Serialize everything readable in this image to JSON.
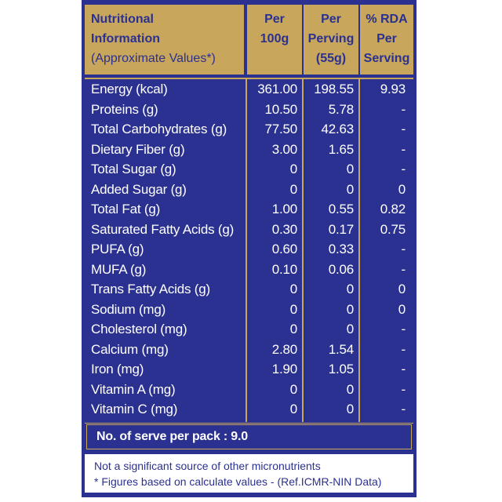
{
  "table": {
    "header": [
      [
        "Nutritional",
        "Information",
        "(Approximate Values*)"
      ],
      [
        "Per",
        "100g"
      ],
      [
        "Per",
        "Perving",
        "(55g)"
      ],
      [
        "% RDA",
        "Per",
        "Serving"
      ]
    ],
    "rows": [
      [
        "Energy (kcal)",
        "361.00",
        "198.55",
        "9.93"
      ],
      [
        "Proteins (g)",
        "10.50",
        "5.78",
        "-"
      ],
      [
        "Total Carbohydrates (g)",
        "77.50",
        "42.63",
        "-"
      ],
      [
        "Dietary Fiber (g)",
        "3.00",
        "1.65",
        "-"
      ],
      [
        "Total Sugar (g)",
        "0",
        "0",
        "-"
      ],
      [
        "Added Sugar (g)",
        "0",
        "0",
        "0"
      ],
      [
        "Total Fat (g)",
        "1.00",
        "0.55",
        "0.82"
      ],
      [
        "Saturated Fatty Acids (g)",
        "0.30",
        "0.17",
        "0.75"
      ],
      [
        "PUFA (g)",
        "0.60",
        "0.33",
        "-"
      ],
      [
        "MUFA (g)",
        "0.10",
        "0.06",
        "-"
      ],
      [
        "Trans Fatty Acids (g)",
        "0",
        "0",
        "0"
      ],
      [
        "Sodium (mg)",
        "0",
        "0",
        "0"
      ],
      [
        "Cholesterol (mg)",
        "0",
        "0",
        "-"
      ],
      [
        "Calcium (mg)",
        "2.80",
        "1.54",
        "-"
      ],
      [
        "Iron (mg)",
        "1.90",
        "1.05",
        "-"
      ],
      [
        "Vitamin A (mg)",
        "0",
        "0",
        "-"
      ],
      [
        "Vitamin C (mg)",
        "0",
        "0",
        "-"
      ]
    ],
    "serve": "No. of serve per pack : 9.0",
    "footer": [
      "Not a significant source of other micronutrients",
      "* Figures based on calculate values - (Ref.ICMR-NIN Data)"
    ]
  }
}
